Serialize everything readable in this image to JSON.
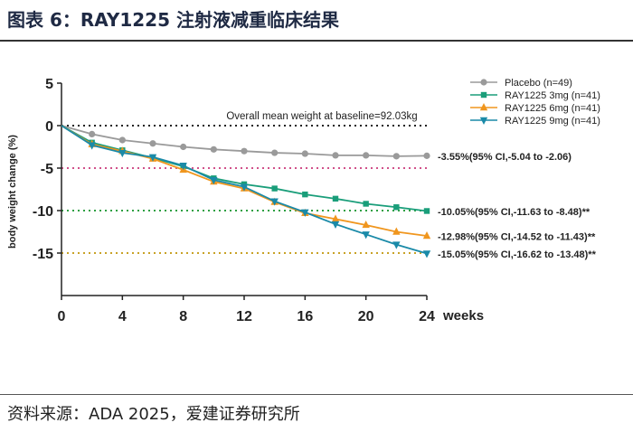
{
  "figure": {
    "title": "图表 6：RAY1225 注射液减重临床结果",
    "source": "资料来源：ADA 2025，爱建证券研究所"
  },
  "chart_data": {
    "type": "line",
    "xlabel": "weeks",
    "ylabel": "body weight change (%)",
    "xlim": [
      0,
      24
    ],
    "ylim": [
      -20,
      5
    ],
    "x_ticks": [
      0,
      4,
      8,
      12,
      16,
      20,
      24
    ],
    "y_ticks": [
      5,
      0,
      -5,
      -10,
      -15
    ],
    "baseline_note": "Overall mean weight at baseline=92.03kg",
    "legend_position": "top-right",
    "reference_lines": [
      {
        "y": 0,
        "color": "#222222"
      },
      {
        "y": -5,
        "color": "#d0508a"
      },
      {
        "y": -10,
        "color": "#2ea043"
      },
      {
        "y": -15,
        "color": "#c9a227"
      }
    ],
    "series": [
      {
        "name": "Placebo (n=49)",
        "color": "#9a9a9a",
        "marker": "circle",
        "x": [
          0,
          2,
          4,
          6,
          8,
          10,
          12,
          14,
          16,
          18,
          20,
          22,
          24
        ],
        "values": [
          0,
          -1.0,
          -1.7,
          -2.1,
          -2.5,
          -2.8,
          -3.0,
          -3.2,
          -3.3,
          -3.5,
          -3.5,
          -3.6,
          -3.55
        ],
        "end_label": "-3.55%(95% CI,-5.04 to -2.06)"
      },
      {
        "name": "RAY1225 3mg (n=41)",
        "color": "#1a9e7a",
        "marker": "square",
        "x": [
          0,
          2,
          4,
          6,
          8,
          10,
          12,
          14,
          16,
          18,
          20,
          22,
          24
        ],
        "values": [
          0,
          -2.0,
          -2.9,
          -3.8,
          -4.8,
          -6.2,
          -6.9,
          -7.4,
          -8.1,
          -8.6,
          -9.2,
          -9.6,
          -10.05
        ],
        "end_label": "-10.05%(95% CI,-11.63 to -8.48)**"
      },
      {
        "name": "RAY1225 6mg (n=41)",
        "color": "#f0961e",
        "marker": "triangle-up",
        "x": [
          0,
          2,
          4,
          6,
          8,
          10,
          12,
          14,
          16,
          18,
          20,
          22,
          24
        ],
        "values": [
          0,
          -2.2,
          -3.0,
          -3.9,
          -5.2,
          -6.6,
          -7.4,
          -9.0,
          -10.3,
          -11.0,
          -11.7,
          -12.5,
          -12.98
        ],
        "end_label": "-12.98%(95% CI,-14.52 to -11.43)**"
      },
      {
        "name": "RAY1225 9mg (n=41)",
        "color": "#1a8aa8",
        "marker": "triangle-down",
        "x": [
          0,
          2,
          4,
          6,
          8,
          10,
          12,
          14,
          16,
          18,
          20,
          22,
          24
        ],
        "values": [
          0,
          -2.3,
          -3.2,
          -3.7,
          -4.7,
          -6.4,
          -7.2,
          -8.9,
          -10.2,
          -11.6,
          -12.8,
          -14.0,
          -15.05
        ],
        "end_label": "-15.05%(95% CI,-16.62 to -13.48)**"
      }
    ]
  }
}
